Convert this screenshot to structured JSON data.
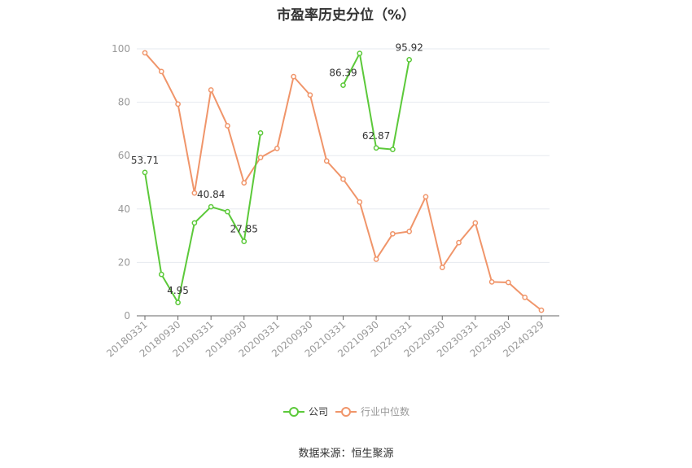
{
  "title": "市盈率历史分位（%）",
  "source": "数据来源：恒生聚源",
  "colors": {
    "company": "#5cc93a",
    "industry": "#f0956a",
    "grid": "#e6e9ef",
    "axis": "#999999",
    "tick_text": "#999999",
    "label_text": "#333333"
  },
  "chart_data": {
    "type": "line",
    "title": "市盈率历史分位（%）",
    "ylim": [
      0,
      100
    ],
    "yticks": [
      0,
      20,
      40,
      60,
      80,
      100
    ],
    "grid": true,
    "legend_position": "bottom-center",
    "x": [
      "20180331",
      "20180630",
      "20180930",
      "20181231",
      "20190331",
      "20190630",
      "20190930",
      "20191231",
      "20200331",
      "20200630",
      "20200930",
      "20201231",
      "20210331",
      "20210630",
      "20210930",
      "20211231",
      "20220331",
      "20220630",
      "20220930",
      "20221231",
      "20230331",
      "20230630",
      "20230930",
      "20231231",
      "20240329"
    ],
    "xtick_labels": [
      "20180331",
      "20180930",
      "20190331",
      "20190930",
      "20200331",
      "20200930",
      "20210331",
      "20210930",
      "20220331",
      "20220930",
      "20230331",
      "20230930",
      "20240329"
    ],
    "series": [
      {
        "name": "公司",
        "color": "#5cc93a",
        "values": [
          53.71,
          15.5,
          4.95,
          34.8,
          40.84,
          39,
          27.85,
          68.5,
          null,
          null,
          null,
          null,
          86.39,
          98.3,
          62.87,
          62.3,
          95.92,
          null,
          null,
          null,
          null,
          null,
          null,
          null,
          null
        ],
        "labels": [
          {
            "index": 0,
            "text": "53.71"
          },
          {
            "index": 2,
            "text": "4.95"
          },
          {
            "index": 4,
            "text": "40.84"
          },
          {
            "index": 6,
            "text": "27.85"
          },
          {
            "index": 12,
            "text": "86.39"
          },
          {
            "index": 14,
            "text": "62.87"
          },
          {
            "index": 16,
            "text": "95.92"
          }
        ]
      },
      {
        "name": "行业中位数",
        "color": "#f0956a",
        "values": [
          98.5,
          91.5,
          79.3,
          46,
          84.6,
          71.2,
          49.8,
          59.3,
          62.7,
          89.6,
          82.7,
          58,
          51.2,
          42.6,
          21.2,
          30.7,
          31.6,
          44.6,
          18.1,
          27.4,
          34.8,
          12.7,
          12.5,
          6.9,
          2.1
        ],
        "labels": []
      }
    ]
  }
}
